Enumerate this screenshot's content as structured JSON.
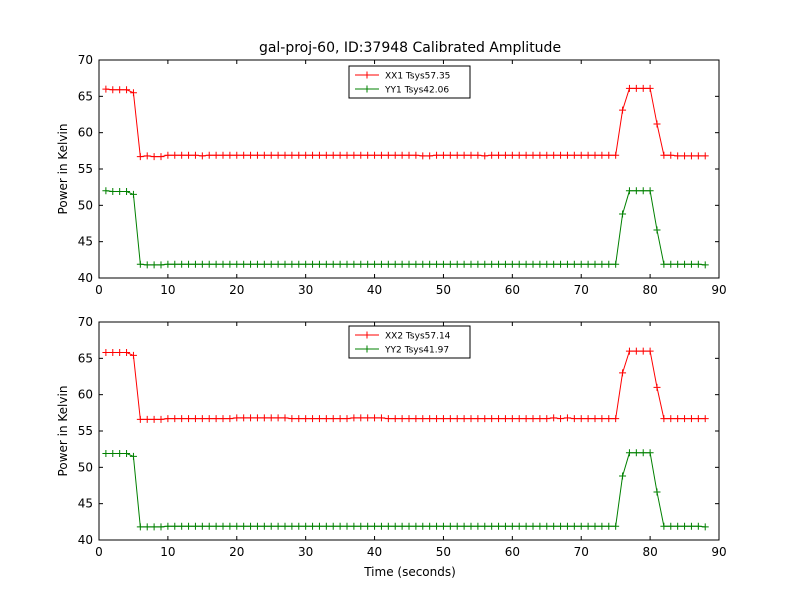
{
  "title": "gal-proj-60, ID:37948 Calibrated Amplitude",
  "xlabel": "Time (seconds)",
  "colors": {
    "red": "#ff0000",
    "green": "#008000"
  },
  "chart_data": [
    {
      "type": "line",
      "ylabel": "Power in Kelvin",
      "xlim": [
        0,
        90
      ],
      "ylim": [
        40,
        70
      ],
      "xticks": [
        0,
        10,
        20,
        30,
        40,
        50,
        60,
        70,
        80,
        90
      ],
      "yticks": [
        40,
        45,
        50,
        55,
        60,
        65,
        70
      ],
      "grid": false,
      "legend_position": "top-center",
      "series": [
        {
          "name": "XX1 Tsys57.35",
          "color": "#ff0000",
          "marker": "+",
          "x": [
            1,
            2,
            3,
            4,
            5,
            6,
            7,
            8,
            9,
            10,
            11,
            12,
            13,
            14,
            15,
            16,
            17,
            18,
            19,
            20,
            21,
            22,
            23,
            24,
            25,
            26,
            27,
            28,
            29,
            30,
            31,
            32,
            33,
            34,
            35,
            36,
            37,
            38,
            39,
            40,
            41,
            42,
            43,
            44,
            45,
            46,
            47,
            48,
            49,
            50,
            51,
            52,
            53,
            54,
            55,
            56,
            57,
            58,
            59,
            60,
            61,
            62,
            63,
            64,
            65,
            66,
            67,
            68,
            69,
            70,
            71,
            72,
            73,
            74,
            75,
            76,
            77,
            78,
            79,
            80,
            81,
            82,
            83,
            84,
            85,
            86,
            87,
            88
          ],
          "y": [
            66,
            65.9,
            65.9,
            65.9,
            65.5,
            56.7,
            56.8,
            56.7,
            56.7,
            56.9,
            56.9,
            56.9,
            56.9,
            56.9,
            56.8,
            56.9,
            56.9,
            56.9,
            56.9,
            56.9,
            56.9,
            56.9,
            56.9,
            56.9,
            56.9,
            56.9,
            56.9,
            56.9,
            56.9,
            56.9,
            56.9,
            56.9,
            56.9,
            56.9,
            56.9,
            56.9,
            56.9,
            56.9,
            56.9,
            56.9,
            56.9,
            56.9,
            56.9,
            56.9,
            56.9,
            56.9,
            56.8,
            56.8,
            56.9,
            56.9,
            56.9,
            56.9,
            56.9,
            56.9,
            56.9,
            56.8,
            56.9,
            56.9,
            56.9,
            56.9,
            56.9,
            56.9,
            56.9,
            56.9,
            56.9,
            56.9,
            56.9,
            56.9,
            56.9,
            56.9,
            56.9,
            56.9,
            56.9,
            56.9,
            56.9,
            63.1,
            66.1,
            66.1,
            66.1,
            66.1,
            61.2,
            56.9,
            56.9,
            56.8,
            56.8,
            56.8,
            56.8,
            56.8
          ]
        },
        {
          "name": "YY1 Tsys42.06",
          "color": "#008000",
          "marker": "+",
          "x": [
            1,
            2,
            3,
            4,
            5,
            6,
            7,
            8,
            9,
            10,
            11,
            12,
            13,
            14,
            15,
            16,
            17,
            18,
            19,
            20,
            21,
            22,
            23,
            24,
            25,
            26,
            27,
            28,
            29,
            30,
            31,
            32,
            33,
            34,
            35,
            36,
            37,
            38,
            39,
            40,
            41,
            42,
            43,
            44,
            45,
            46,
            47,
            48,
            49,
            50,
            51,
            52,
            53,
            54,
            55,
            56,
            57,
            58,
            59,
            60,
            61,
            62,
            63,
            64,
            65,
            66,
            67,
            68,
            69,
            70,
            71,
            72,
            73,
            74,
            75,
            76,
            77,
            78,
            79,
            80,
            81,
            82,
            83,
            84,
            85,
            86,
            87,
            88
          ],
          "y": [
            52,
            51.9,
            51.9,
            51.9,
            51.5,
            41.9,
            41.8,
            41.8,
            41.8,
            41.9,
            41.9,
            41.9,
            41.9,
            41.9,
            41.9,
            41.9,
            41.9,
            41.9,
            41.9,
            41.9,
            41.9,
            41.9,
            41.9,
            41.9,
            41.9,
            41.9,
            41.9,
            41.9,
            41.9,
            41.9,
            41.9,
            41.9,
            41.9,
            41.9,
            41.9,
            41.9,
            41.9,
            41.9,
            41.9,
            41.9,
            41.9,
            41.9,
            41.9,
            41.9,
            41.9,
            41.9,
            41.9,
            41.9,
            41.9,
            41.9,
            41.9,
            41.9,
            41.9,
            41.9,
            41.9,
            41.9,
            41.9,
            41.9,
            41.9,
            41.9,
            41.9,
            41.9,
            41.9,
            41.9,
            41.9,
            41.9,
            41.9,
            41.9,
            41.9,
            41.9,
            41.9,
            41.9,
            41.9,
            41.9,
            41.9,
            48.8,
            52,
            52,
            52,
            52,
            46.6,
            41.9,
            41.9,
            41.9,
            41.9,
            41.9,
            41.9,
            41.8
          ]
        }
      ]
    },
    {
      "type": "line",
      "ylabel": "Power in Kelvin",
      "xlabel": "Time (seconds)",
      "xlim": [
        0,
        90
      ],
      "ylim": [
        40,
        70
      ],
      "xticks": [
        0,
        10,
        20,
        30,
        40,
        50,
        60,
        70,
        80,
        90
      ],
      "yticks": [
        40,
        45,
        50,
        55,
        60,
        65,
        70
      ],
      "grid": false,
      "legend_position": "top-center",
      "series": [
        {
          "name": "XX2 Tsys57.14",
          "color": "#ff0000",
          "marker": "+",
          "x": [
            1,
            2,
            3,
            4,
            5,
            6,
            7,
            8,
            9,
            10,
            11,
            12,
            13,
            14,
            15,
            16,
            17,
            18,
            19,
            20,
            21,
            22,
            23,
            24,
            25,
            26,
            27,
            28,
            29,
            30,
            31,
            32,
            33,
            34,
            35,
            36,
            37,
            38,
            39,
            40,
            41,
            42,
            43,
            44,
            45,
            46,
            47,
            48,
            49,
            50,
            51,
            52,
            53,
            54,
            55,
            56,
            57,
            58,
            59,
            60,
            61,
            62,
            63,
            64,
            65,
            66,
            67,
            68,
            69,
            70,
            71,
            72,
            73,
            74,
            75,
            76,
            77,
            78,
            79,
            80,
            81,
            82,
            83,
            84,
            85,
            86,
            87,
            88
          ],
          "y": [
            65.8,
            65.8,
            65.8,
            65.8,
            65.4,
            56.6,
            56.6,
            56.6,
            56.6,
            56.7,
            56.7,
            56.7,
            56.7,
            56.7,
            56.7,
            56.7,
            56.7,
            56.7,
            56.7,
            56.8,
            56.8,
            56.8,
            56.8,
            56.8,
            56.8,
            56.8,
            56.8,
            56.7,
            56.7,
            56.7,
            56.7,
            56.7,
            56.7,
            56.7,
            56.7,
            56.7,
            56.8,
            56.8,
            56.8,
            56.8,
            56.8,
            56.7,
            56.7,
            56.7,
            56.7,
            56.7,
            56.7,
            56.7,
            56.7,
            56.7,
            56.7,
            56.7,
            56.7,
            56.7,
            56.7,
            56.7,
            56.7,
            56.7,
            56.7,
            56.7,
            56.7,
            56.7,
            56.7,
            56.7,
            56.7,
            56.8,
            56.7,
            56.8,
            56.7,
            56.7,
            56.7,
            56.7,
            56.7,
            56.7,
            56.7,
            63,
            66,
            66,
            66,
            66,
            61,
            56.7,
            56.7,
            56.7,
            56.7,
            56.7,
            56.7,
            56.7
          ]
        },
        {
          "name": "YY2 Tsys41.97",
          "color": "#008000",
          "marker": "+",
          "x": [
            1,
            2,
            3,
            4,
            5,
            6,
            7,
            8,
            9,
            10,
            11,
            12,
            13,
            14,
            15,
            16,
            17,
            18,
            19,
            20,
            21,
            22,
            23,
            24,
            25,
            26,
            27,
            28,
            29,
            30,
            31,
            32,
            33,
            34,
            35,
            36,
            37,
            38,
            39,
            40,
            41,
            42,
            43,
            44,
            45,
            46,
            47,
            48,
            49,
            50,
            51,
            52,
            53,
            54,
            55,
            56,
            57,
            58,
            59,
            60,
            61,
            62,
            63,
            64,
            65,
            66,
            67,
            68,
            69,
            70,
            71,
            72,
            73,
            74,
            75,
            76,
            77,
            78,
            79,
            80,
            81,
            82,
            83,
            84,
            85,
            86,
            87,
            88
          ],
          "y": [
            51.9,
            51.9,
            51.9,
            51.9,
            51.5,
            41.8,
            41.8,
            41.8,
            41.8,
            41.9,
            41.9,
            41.9,
            41.9,
            41.9,
            41.9,
            41.9,
            41.9,
            41.9,
            41.9,
            41.9,
            41.9,
            41.9,
            41.9,
            41.9,
            41.9,
            41.9,
            41.9,
            41.9,
            41.9,
            41.9,
            41.9,
            41.9,
            41.9,
            41.9,
            41.9,
            41.9,
            41.9,
            41.9,
            41.9,
            41.9,
            41.9,
            41.9,
            41.9,
            41.9,
            41.9,
            41.9,
            41.9,
            41.9,
            41.9,
            41.9,
            41.9,
            41.9,
            41.9,
            41.9,
            41.9,
            41.9,
            41.9,
            41.9,
            41.9,
            41.9,
            41.9,
            41.9,
            41.9,
            41.9,
            41.9,
            41.9,
            41.9,
            41.9,
            41.9,
            41.9,
            41.9,
            41.9,
            41.9,
            41.9,
            41.9,
            48.8,
            52,
            52,
            52,
            52,
            46.6,
            41.9,
            41.9,
            41.9,
            41.9,
            41.9,
            41.9,
            41.8
          ]
        }
      ]
    }
  ]
}
